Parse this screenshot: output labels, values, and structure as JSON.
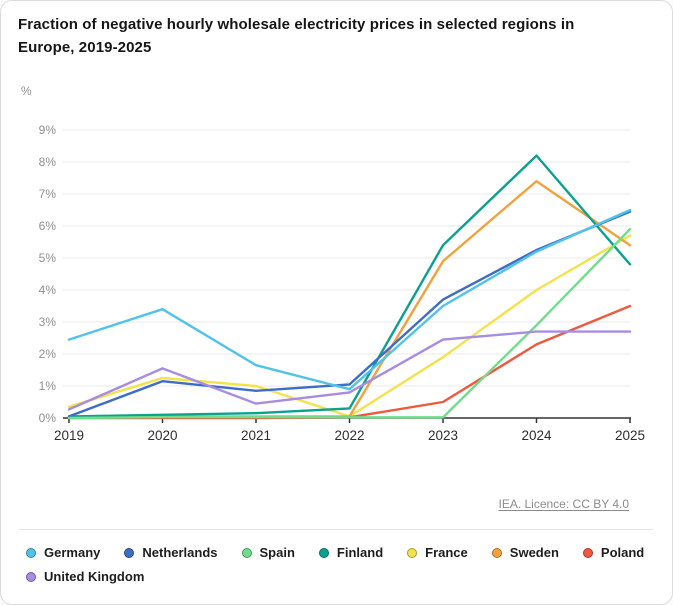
{
  "title": "Fraction of negative hourly wholesale electricity prices in selected regions in Europe, 2019-2025",
  "footer": {
    "license_link": "IEA. Licence: CC BY 4.0"
  },
  "chart_data": {
    "type": "line",
    "title": "Fraction of negative hourly wholesale electricity prices in selected regions in Europe, 2019-2025",
    "unit_label": "%",
    "x_labels": [
      "2019",
      "2020",
      "2021",
      "2022",
      "2023",
      "2024",
      "2025"
    ],
    "y_tick_labels": [
      "0%",
      "1%",
      "2%",
      "3%",
      "4%",
      "5%",
      "6%",
      "7%",
      "8%",
      "9%"
    ],
    "ylim": [
      0,
      9
    ],
    "grid": true,
    "legend_position": "bottom",
    "series": [
      {
        "name": "Germany",
        "color": "#4FC3EA",
        "values": [
          2.45,
          3.4,
          1.65,
          0.9,
          3.5,
          5.2,
          6.5
        ]
      },
      {
        "name": "Netherlands",
        "color": "#3D6EC4",
        "values": [
          0.05,
          1.15,
          0.85,
          1.05,
          3.7,
          5.25,
          6.45
        ]
      },
      {
        "name": "Spain",
        "color": "#6FDD8B",
        "values": [
          0.0,
          0.03,
          0.03,
          0.02,
          0.02,
          2.9,
          5.9
        ]
      },
      {
        "name": "Finland",
        "color": "#0CA08E",
        "values": [
          0.05,
          0.1,
          0.15,
          0.3,
          5.4,
          8.2,
          4.8
        ]
      },
      {
        "name": "France",
        "color": "#F2E24C",
        "values": [
          0.35,
          1.25,
          1.0,
          0.05,
          1.9,
          4.0,
          5.7
        ]
      },
      {
        "name": "Sweden",
        "color": "#F0A33D",
        "values": [
          0.03,
          0.05,
          0.05,
          0.05,
          4.9,
          7.4,
          5.4
        ]
      },
      {
        "name": "Poland",
        "color": "#EE5940",
        "values": [
          0.0,
          0.0,
          0.0,
          0.02,
          0.5,
          2.3,
          3.5
        ]
      },
      {
        "name": "United Kingdom",
        "color": "#A78CE0",
        "values": [
          0.27,
          1.55,
          0.45,
          0.8,
          2.45,
          2.7,
          2.7
        ]
      }
    ]
  }
}
